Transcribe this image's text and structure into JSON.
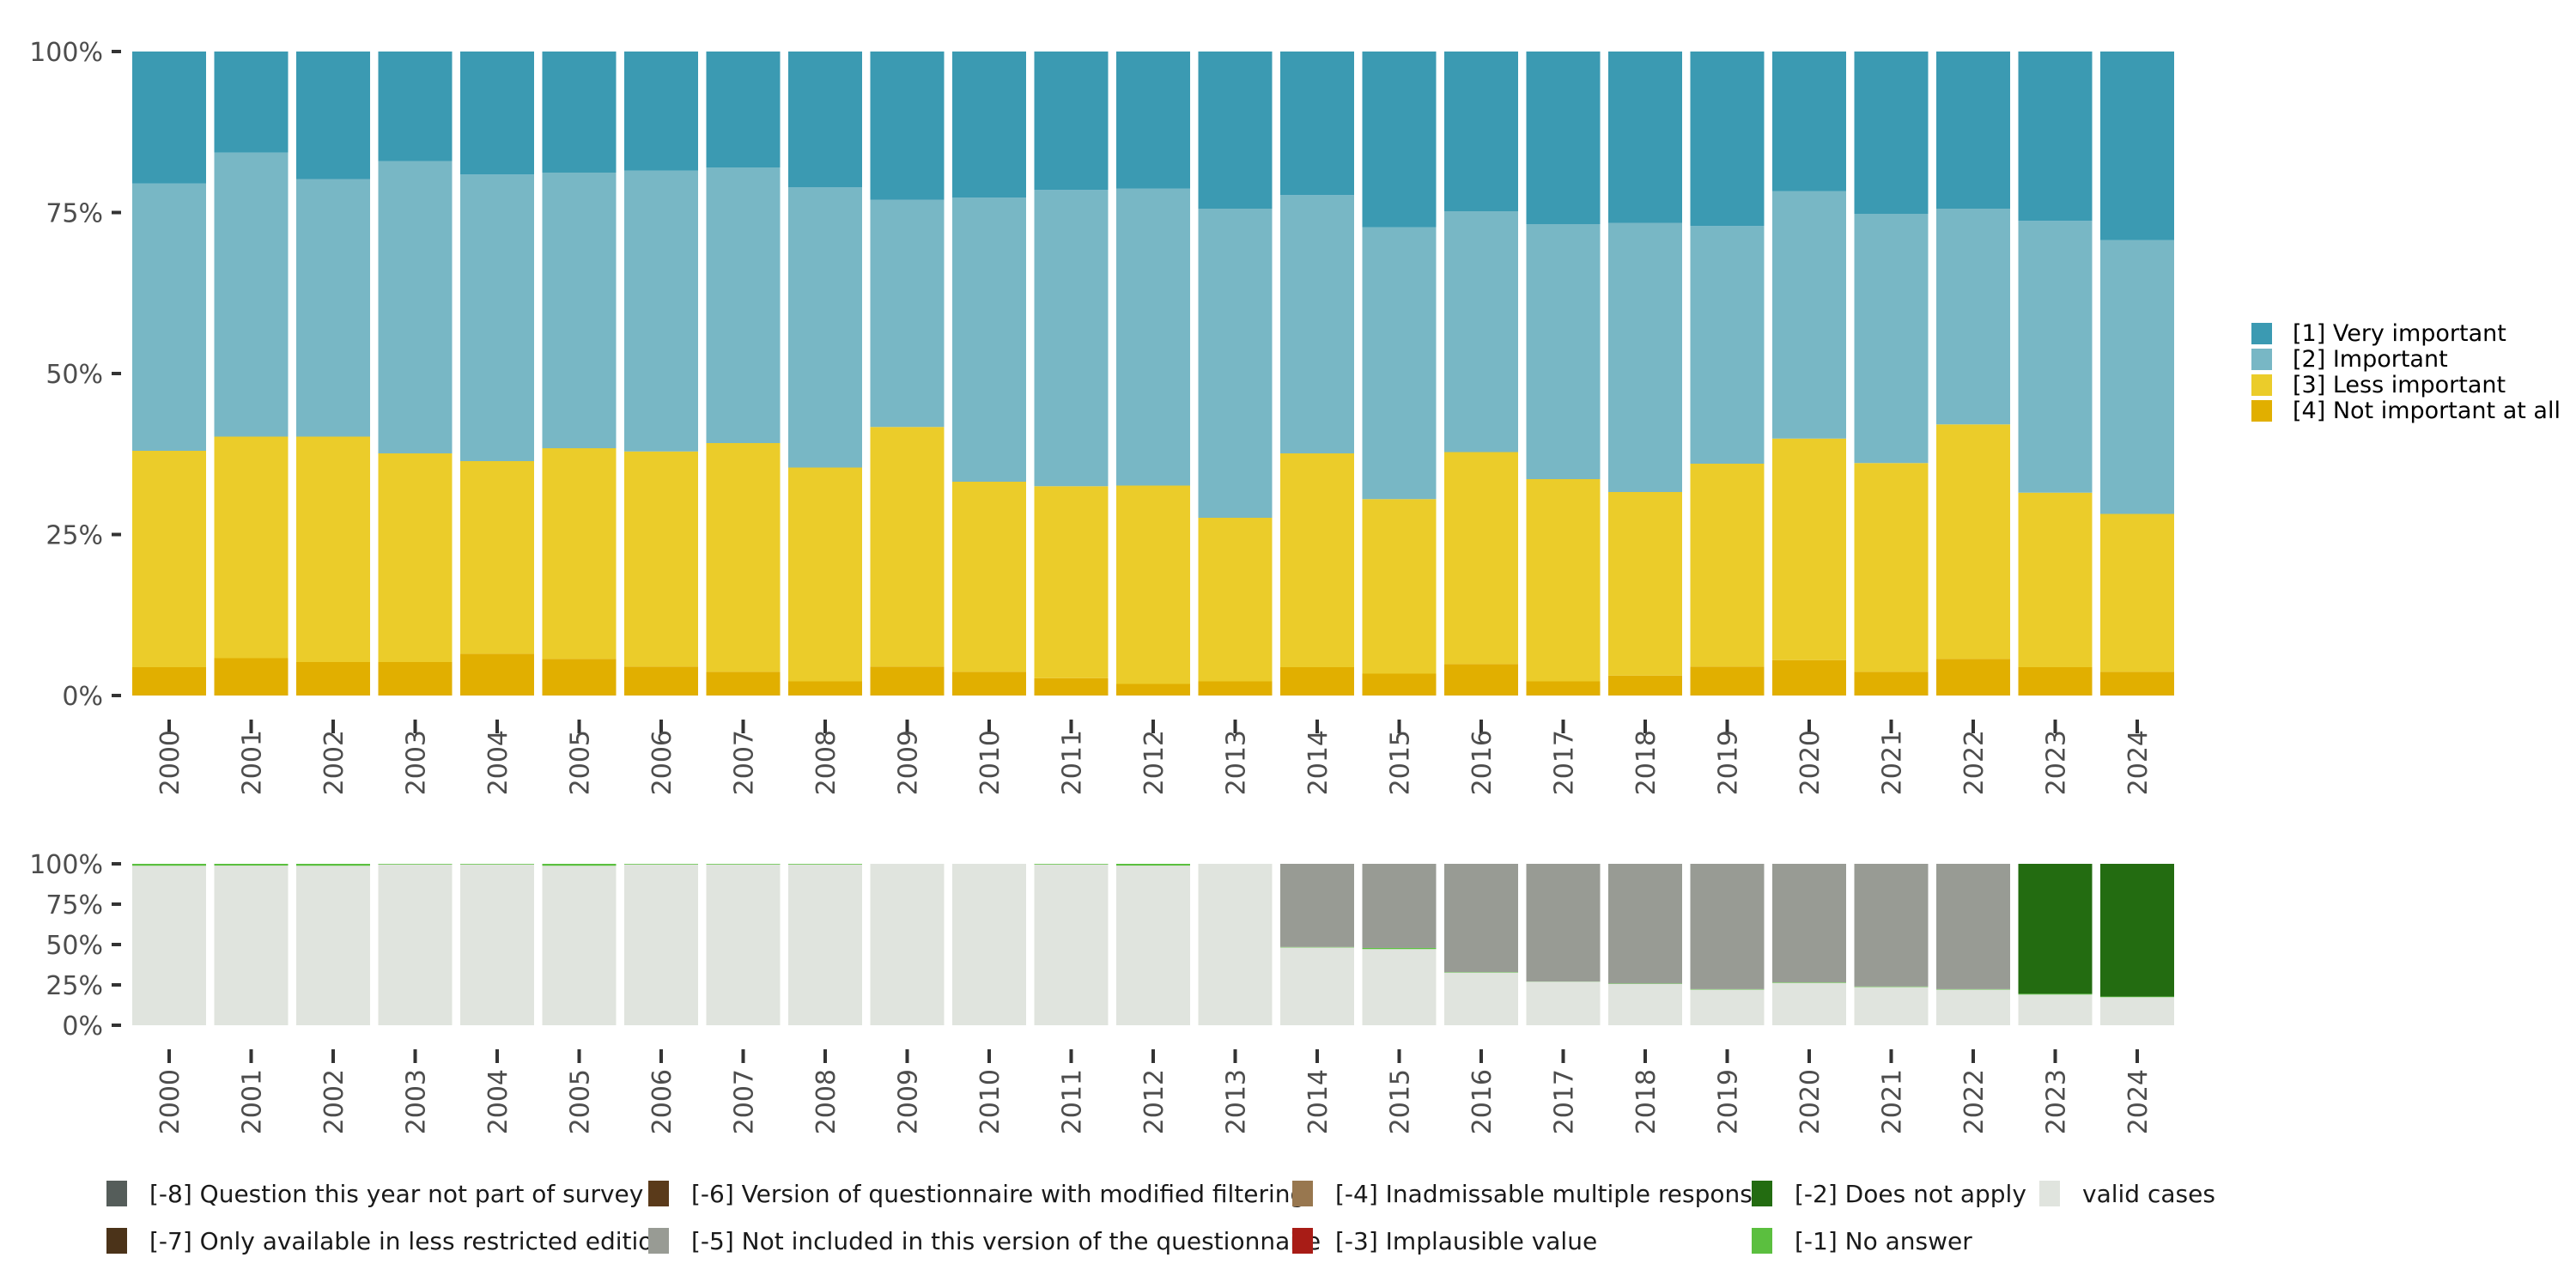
{
  "chart_data": [
    {
      "type": "bar",
      "stacked": true,
      "percent": true,
      "title": "",
      "xlabel": "",
      "ylabel": "",
      "ylim": [
        0,
        100
      ],
      "yticks": [
        "0%",
        "25%",
        "50%",
        "75%",
        "100%"
      ],
      "categories": [
        "2000",
        "2001",
        "2002",
        "2003",
        "2004",
        "2005",
        "2006",
        "2007",
        "2008",
        "2009",
        "2010",
        "2011",
        "2012",
        "2013",
        "2014",
        "2015",
        "2016",
        "2017",
        "2018",
        "2019",
        "2020",
        "2021",
        "2022",
        "2023",
        "2024"
      ],
      "series": [
        {
          "name": "[4] Not important at all",
          "color": "#E1AF00",
          "values": [
            4.4,
            5.8,
            5.2,
            5.2,
            6.5,
            5.7,
            4.5,
            3.7,
            2.2,
            4.5,
            3.7,
            2.7,
            1.8,
            2.2,
            4.4,
            3.4,
            4.9,
            2.2,
            3.1,
            4.5,
            5.5,
            3.7,
            5.7,
            4.4,
            3.7
          ]
        },
        {
          "name": "[3] Less important",
          "color": "#EBCC2A",
          "values": [
            33.6,
            34.4,
            35.0,
            32.4,
            29.9,
            32.7,
            33.4,
            35.5,
            33.2,
            37.2,
            29.5,
            29.8,
            30.8,
            25.4,
            33.2,
            27.1,
            32.9,
            31.4,
            28.5,
            31.5,
            34.4,
            32.4,
            36.4,
            27.1,
            24.5
          ]
        },
        {
          "name": "[2] Important",
          "color": "#78B7C5",
          "values": [
            41.5,
            44.1,
            40.0,
            45.4,
            44.5,
            42.8,
            43.6,
            42.8,
            43.5,
            35.3,
            44.1,
            46.0,
            46.1,
            48.0,
            40.1,
            42.2,
            37.4,
            39.6,
            41.8,
            36.9,
            38.4,
            38.7,
            33.5,
            42.2,
            42.5
          ]
        },
        {
          "name": "[1] Very important",
          "color": "#3B9AB2",
          "values": [
            20.5,
            15.7,
            19.8,
            17.0,
            19.1,
            18.8,
            18.5,
            18.0,
            21.1,
            23.0,
            22.7,
            21.5,
            21.3,
            24.4,
            22.3,
            27.3,
            24.8,
            26.8,
            26.6,
            27.1,
            21.7,
            25.2,
            24.4,
            26.3,
            29.3
          ]
        }
      ],
      "legend": {
        "placement": "right",
        "entries": [
          "[1] Very important",
          "[2] Important",
          "[3] Less important",
          "[4] Not important at all"
        ],
        "colors": [
          "#3B9AB2",
          "#78B7C5",
          "#EBCC2A",
          "#E1AF00"
        ]
      }
    },
    {
      "type": "bar",
      "stacked": true,
      "percent": true,
      "title": "",
      "xlabel": "",
      "ylabel": "",
      "ylim": [
        0,
        100
      ],
      "yticks": [
        "0%",
        "25%",
        "50%",
        "75%",
        "100%"
      ],
      "categories": [
        "2000",
        "2001",
        "2002",
        "2003",
        "2004",
        "2005",
        "2006",
        "2007",
        "2008",
        "2009",
        "2010",
        "2011",
        "2012",
        "2013",
        "2014",
        "2015",
        "2016",
        "2017",
        "2018",
        "2019",
        "2020",
        "2021",
        "2022",
        "2023",
        "2024"
      ],
      "series": [
        {
          "name": "valid cases",
          "color": "#E0E4DE",
          "values": [
            98.8,
            98.9,
            98.8,
            99.6,
            99.6,
            98.8,
            99.6,
            99.6,
            99.6,
            100,
            100,
            99.6,
            98.9,
            100,
            48.2,
            47.2,
            32.6,
            27.0,
            25.6,
            22.1,
            26.3,
            23.7,
            22.1,
            19.0,
            17.4
          ]
        },
        {
          "name": "[-1] No answer",
          "color": "#5BBF3F",
          "values": [
            1.2,
            1.1,
            1.2,
            0.4,
            0.4,
            1.2,
            0.4,
            0.4,
            0.4,
            0,
            0,
            0.4,
            1.1,
            0,
            0.3,
            0.7,
            0.3,
            0.1,
            0.3,
            0.3,
            0.3,
            0.3,
            0.3,
            0.5,
            0.4
          ]
        },
        {
          "name": "[-2] Does not apply",
          "color": "#236C11",
          "values": [
            0,
            0,
            0,
            0,
            0,
            0,
            0,
            0,
            0,
            0,
            0,
            0,
            0,
            0,
            0,
            0,
            0,
            0,
            0,
            0,
            0,
            0,
            0,
            80.5,
            82.2
          ]
        },
        {
          "name": "[-5] Not included in this version of the questionnaire",
          "color": "#989B94",
          "values": [
            0,
            0,
            0,
            0,
            0,
            0,
            0,
            0,
            0,
            0,
            0,
            0,
            0,
            0,
            51.5,
            52.1,
            67.1,
            72.9,
            74.1,
            77.6,
            73.4,
            76.0,
            77.6,
            0,
            0
          ]
        }
      ],
      "legend": {
        "placement": "bottom",
        "entries": [
          {
            "label": "[-8] Question this year not part of survey",
            "color": "#555D5A"
          },
          {
            "label": "[-7] Only available in less restricted edition",
            "color": "#4B3319"
          },
          {
            "label": "[-6] Version of questionnaire with modified filtering",
            "color": "#5A3A1A"
          },
          {
            "label": "[-5] Not included in this version of the questionnaire",
            "color": "#989B94"
          },
          {
            "label": "[-4] Inadmissable multiple response",
            "color": "#98774F"
          },
          {
            "label": "[-3] Implausible value",
            "color": "#A81C16"
          },
          {
            "label": "[-2] Does not apply",
            "color": "#236C11"
          },
          {
            "label": "[-1] No answer",
            "color": "#5BBF3F"
          },
          {
            "label": "valid cases",
            "color": "#E0E4DE"
          }
        ]
      }
    }
  ]
}
